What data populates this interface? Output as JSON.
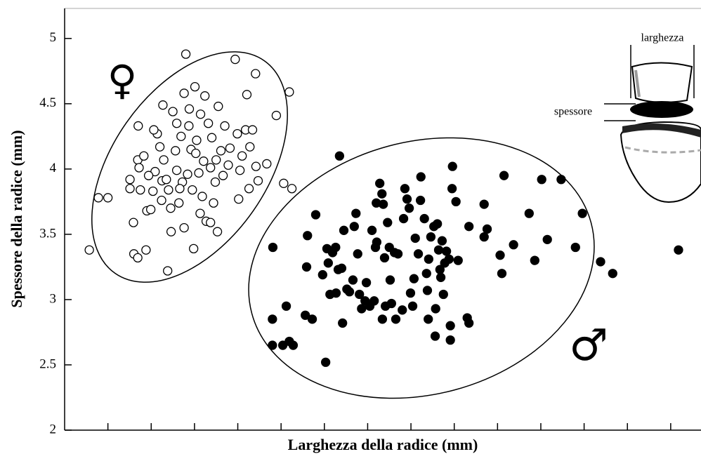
{
  "chart_data": {
    "type": "scatter",
    "x_label": "Larghezza della radice (mm)",
    "y_label": "Spessore della radice (mm)",
    "xlim": [
      0,
      14.7
    ],
    "xticks": [
      1,
      2,
      3,
      4,
      5,
      6,
      7,
      8,
      9,
      10,
      11,
      12,
      13,
      14
    ],
    "ylim": [
      2,
      5.23
    ],
    "yticks": [
      2,
      2.5,
      3,
      3.5,
      4,
      4.5,
      5
    ],
    "annotations": [
      "larghezza",
      "spessore"
    ],
    "series": [
      {
        "name": "♀",
        "color": "#000000",
        "marker": "open",
        "x": [
          0.57,
          0.78,
          1.0,
          1.51,
          1.59,
          1.6,
          1.69,
          1.88,
          1.7,
          1.69,
          1.72,
          1.75,
          1.9,
          1.99,
          2.04,
          2.09,
          2.14,
          2.2,
          2.25,
          2.29,
          2.35,
          2.4,
          2.45,
          2.46,
          2.38,
          2.5,
          2.56,
          2.59,
          2.64,
          2.69,
          2.72,
          2.76,
          2.8,
          2.84,
          2.87,
          2.92,
          2.95,
          2.98,
          3.01,
          3.05,
          3.1,
          3.14,
          3.18,
          3.21,
          3.24,
          3.27,
          3.32,
          3.37,
          3.4,
          3.44,
          3.48,
          3.5,
          3.55,
          3.61,
          3.66,
          3.7,
          3.78,
          3.82,
          3.94,
          3.99,
          4.02,
          4.05,
          4.1,
          4.18,
          4.21,
          4.26,
          4.28,
          4.34,
          4.41,
          4.42,
          4.47,
          4.67,
          4.89,
          5.06,
          5.19,
          5.25,
          2.06,
          2.27,
          2.59,
          2.88,
          3.13,
          3.37,
          3.53,
          2.66,
          2.24,
          1.94,
          1.51,
          1.83,
          3.03,
          2.76
        ],
        "values": [
          3.38,
          3.78,
          3.78,
          3.92,
          3.59,
          3.35,
          3.32,
          3.38,
          4.33,
          4.07,
          4.01,
          3.84,
          3.68,
          3.69,
          3.83,
          3.98,
          4.27,
          4.17,
          3.91,
          4.07,
          3.92,
          3.84,
          3.7,
          3.52,
          3.22,
          4.44,
          4.14,
          3.99,
          3.74,
          4.25,
          3.9,
          3.55,
          4.88,
          3.96,
          4.33,
          4.15,
          3.84,
          3.39,
          4.63,
          4.22,
          3.97,
          4.42,
          3.79,
          4.06,
          4.56,
          3.6,
          4.35,
          4.01,
          4.24,
          3.74,
          3.9,
          4.07,
          4.48,
          4.14,
          3.95,
          4.33,
          4.03,
          4.16,
          4.84,
          4.27,
          3.77,
          3.99,
          4.1,
          4.3,
          4.57,
          3.85,
          4.17,
          4.3,
          4.73,
          4.02,
          3.91,
          4.04,
          4.41,
          3.89,
          4.59,
          3.85,
          4.3,
          4.49,
          4.35,
          4.46,
          3.66,
          3.59,
          3.52,
          3.85,
          3.76,
          3.95,
          3.85,
          4.1,
          4.12,
          4.58
        ]
      },
      {
        "name": "♂",
        "color": "#000000",
        "marker": "filled",
        "x": [
          4.81,
          4.8,
          4.8,
          5.04,
          5.19,
          5.28,
          5.12,
          5.56,
          5.72,
          5.59,
          5.61,
          5.8,
          5.96,
          6.03,
          6.06,
          6.09,
          6.13,
          6.19,
          6.26,
          6.27,
          6.32,
          6.4,
          6.42,
          6.35,
          6.45,
          6.52,
          6.58,
          6.66,
          6.69,
          6.73,
          6.77,
          6.81,
          6.86,
          6.94,
          6.97,
          7.05,
          7.1,
          7.15,
          7.18,
          7.2,
          7.21,
          7.28,
          7.33,
          7.36,
          7.34,
          7.39,
          7.41,
          7.46,
          7.5,
          7.52,
          7.55,
          7.62,
          7.65,
          7.7,
          7.8,
          7.83,
          7.86,
          7.91,
          7.96,
          7.99,
          8.04,
          8.07,
          8.1,
          8.17,
          8.22,
          8.23,
          8.31,
          8.36,
          8.38,
          8.4,
          8.41,
          8.46,
          8.53,
          8.56,
          8.57,
          8.61,
          8.64,
          8.67,
          8.69,
          8.72,
          8.75,
          8.78,
          8.82,
          8.88,
          8.91,
          8.91,
          8.95,
          8.96,
          9.04,
          9.09,
          9.3,
          9.34,
          9.34,
          9.69,
          9.69,
          9.76,
          10.06,
          10.1,
          10.15,
          10.37,
          10.73,
          10.86,
          11.02,
          11.15,
          11.47,
          11.8,
          11.96,
          12.38,
          12.66,
          14.18
        ],
        "values": [
          3.4,
          2.85,
          2.65,
          2.65,
          2.68,
          2.65,
          2.95,
          2.88,
          2.85,
          3.25,
          3.49,
          3.65,
          3.19,
          2.52,
          3.39,
          3.28,
          3.04,
          3.36,
          3.4,
          3.05,
          3.23,
          3.24,
          2.82,
          4.1,
          3.53,
          3.08,
          3.06,
          3.15,
          3.56,
          3.66,
          3.35,
          3.04,
          2.93,
          2.99,
          3.13,
          2.95,
          3.53,
          2.99,
          3.4,
          3.74,
          3.44,
          3.89,
          3.81,
          3.73,
          2.85,
          3.32,
          2.95,
          3.59,
          3.4,
          3.15,
          2.97,
          3.36,
          2.85,
          3.35,
          2.92,
          3.62,
          3.85,
          3.77,
          3.7,
          3.05,
          2.95,
          3.16,
          3.47,
          3.35,
          3.76,
          3.94,
          3.62,
          3.2,
          3.07,
          2.85,
          3.31,
          3.48,
          3.56,
          2.72,
          2.93,
          3.58,
          3.38,
          3.23,
          3.17,
          3.45,
          3.04,
          3.28,
          3.37,
          3.31,
          2.69,
          2.8,
          3.85,
          4.02,
          3.75,
          3.3,
          2.86,
          2.82,
          3.56,
          3.73,
          3.48,
          3.54,
          3.34,
          3.2,
          3.95,
          3.42,
          3.66,
          3.3,
          3.92,
          3.46,
          3.92,
          3.4,
          3.66,
          3.29,
          3.2,
          3.38
        ]
      }
    ]
  }
}
